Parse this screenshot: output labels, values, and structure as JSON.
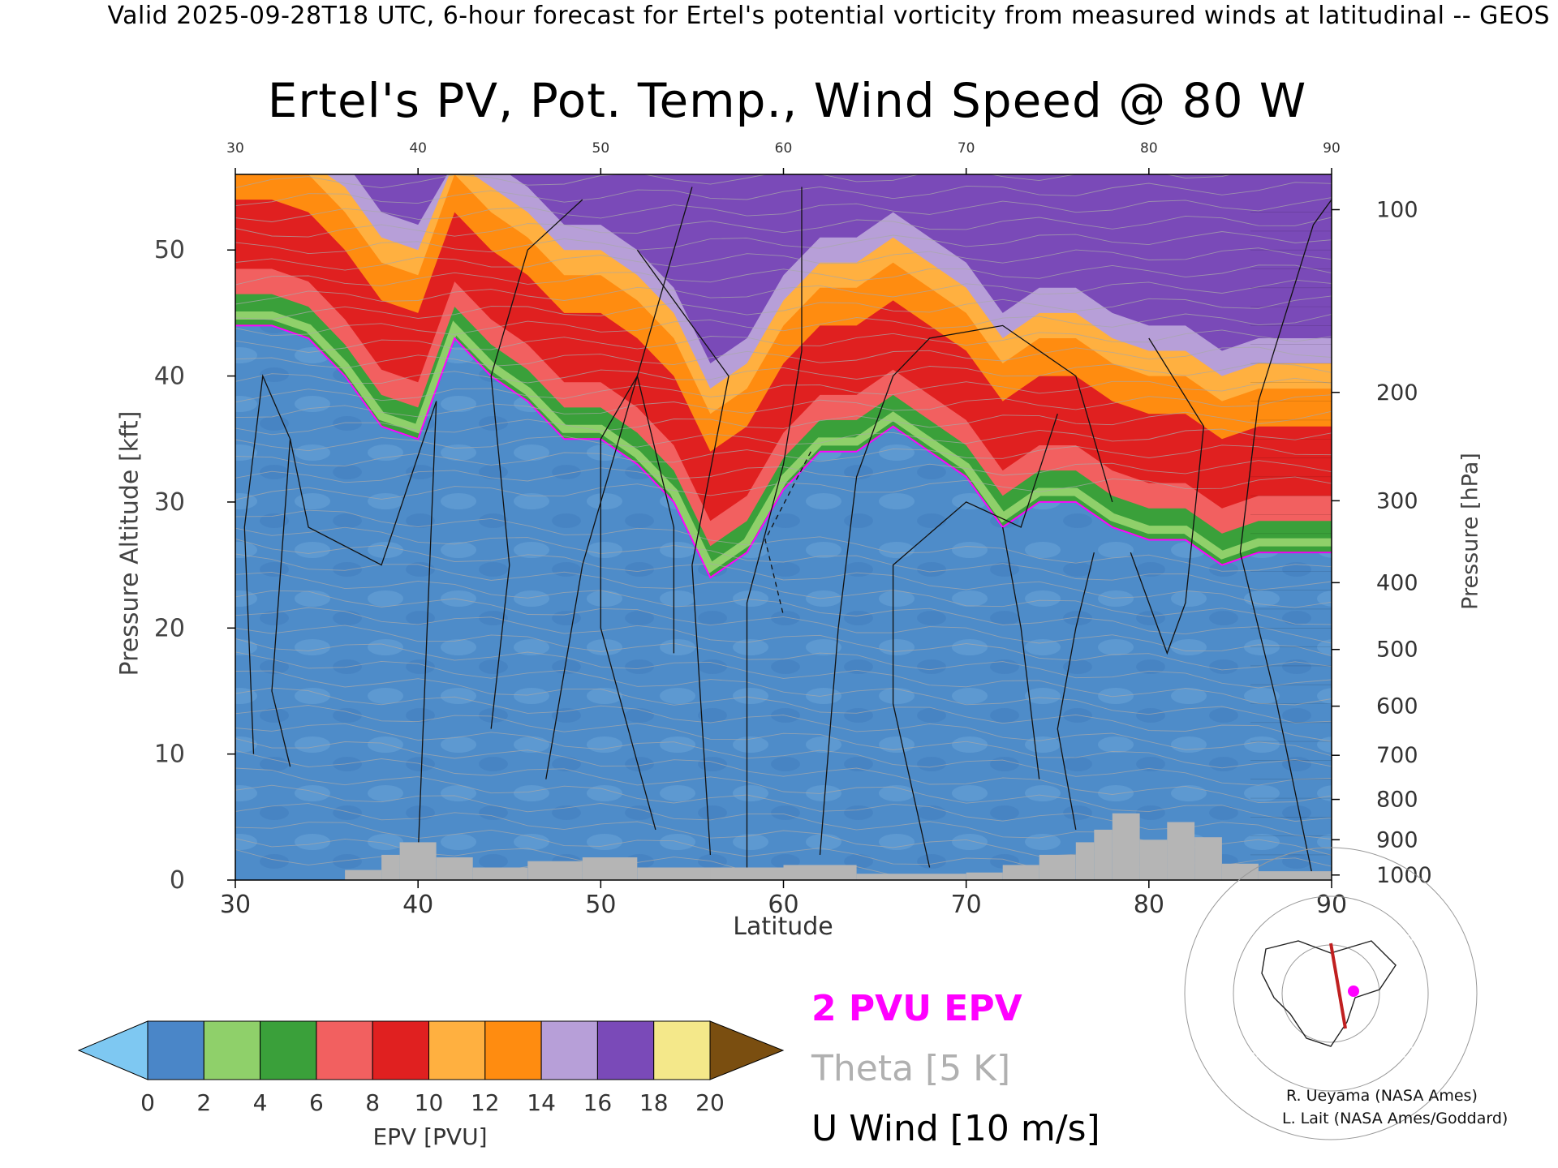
{
  "header": {
    "line": "Valid 2025-09-28T18 UTC, 6-hour forecast for Ertel's potential vorticity from measured winds at latitudinal -- GEOS"
  },
  "chart_data": {
    "type": "heatmap",
    "title": "Ertel's PV, Pot. Temp., Wind Speed @ 80 W",
    "xlabel": "Latitude",
    "ylabel_left": "Pressure Altitude [kft]",
    "ylabel_right": "Pressure [hPa]",
    "xlim": [
      30,
      90
    ],
    "ylim": [
      0,
      56
    ],
    "x_ticks": [
      "30",
      "40",
      "50",
      "60",
      "70",
      "80",
      "90"
    ],
    "x_ticks_top": [
      "30",
      "40",
      "50",
      "60",
      "70",
      "80",
      "90"
    ],
    "y_ticks_left": [
      "0",
      "10",
      "20",
      "30",
      "40",
      "50"
    ],
    "y_ticks_right": [
      {
        "label": "100",
        "kft": 53.2
      },
      {
        "label": "200",
        "kft": 38.7
      },
      {
        "label": "300",
        "kft": 30.1
      },
      {
        "label": "400",
        "kft": 23.6
      },
      {
        "label": "500",
        "kft": 18.3
      },
      {
        "label": "600",
        "kft": 13.8
      },
      {
        "label": "700",
        "kft": 9.9
      },
      {
        "label": "800",
        "kft": 6.4
      },
      {
        "label": "900",
        "kft": 3.2
      },
      {
        "label": "1000",
        "kft": 0.4
      }
    ],
    "tropopause_kft": [
      {
        "lat": 30,
        "kft": 44
      },
      {
        "lat": 32,
        "kft": 44
      },
      {
        "lat": 34,
        "kft": 43
      },
      {
        "lat": 36,
        "kft": 40
      },
      {
        "lat": 38,
        "kft": 36
      },
      {
        "lat": 40,
        "kft": 35
      },
      {
        "lat": 42,
        "kft": 43
      },
      {
        "lat": 44,
        "kft": 40
      },
      {
        "lat": 46,
        "kft": 38
      },
      {
        "lat": 48,
        "kft": 35
      },
      {
        "lat": 50,
        "kft": 35
      },
      {
        "lat": 52,
        "kft": 33
      },
      {
        "lat": 54,
        "kft": 30
      },
      {
        "lat": 56,
        "kft": 24
      },
      {
        "lat": 58,
        "kft": 26
      },
      {
        "lat": 60,
        "kft": 31
      },
      {
        "lat": 62,
        "kft": 34
      },
      {
        "lat": 64,
        "kft": 34
      },
      {
        "lat": 66,
        "kft": 36
      },
      {
        "lat": 68,
        "kft": 34
      },
      {
        "lat": 70,
        "kft": 32
      },
      {
        "lat": 72,
        "kft": 28
      },
      {
        "lat": 74,
        "kft": 30
      },
      {
        "lat": 76,
        "kft": 30
      },
      {
        "lat": 78,
        "kft": 28
      },
      {
        "lat": 80,
        "kft": 27
      },
      {
        "lat": 82,
        "kft": 27
      },
      {
        "lat": 84,
        "kft": 25
      },
      {
        "lat": 86,
        "kft": 26
      },
      {
        "lat": 88,
        "kft": 26
      },
      {
        "lat": 90,
        "kft": 26
      }
    ],
    "colorbar": {
      "label": "EPV [PVU]",
      "ticks": [
        "0",
        "2",
        "4",
        "6",
        "8",
        "10",
        "12",
        "14",
        "16",
        "18",
        "20"
      ],
      "colors": [
        "#4a86c8",
        "#8fd06a",
        "#3aa03a",
        "#f26060",
        "#e02020",
        "#ffb040",
        "#ff8c10",
        "#b79fd8",
        "#7a4ab8",
        "#f4e88a",
        "#a0a0a0"
      ],
      "under_color": "#7ec8f2",
      "over_color": "#7a4e10"
    },
    "legend": {
      "epv": "2 PVU EPV",
      "theta": "Theta [5 K]",
      "uwind": "U Wind [10 m/s]"
    }
  },
  "colors": {
    "epv_contour": "#ff00ff",
    "theta_contour": "#a8a8a8",
    "terrain": "#b5b5b5",
    "map_track": "#c02020",
    "map_marker": "#ff00ff"
  },
  "credits": {
    "line1": "R. Ueyama (NASA Ames)",
    "line2": "L. Lait (NASA Ames/Goddard)"
  }
}
